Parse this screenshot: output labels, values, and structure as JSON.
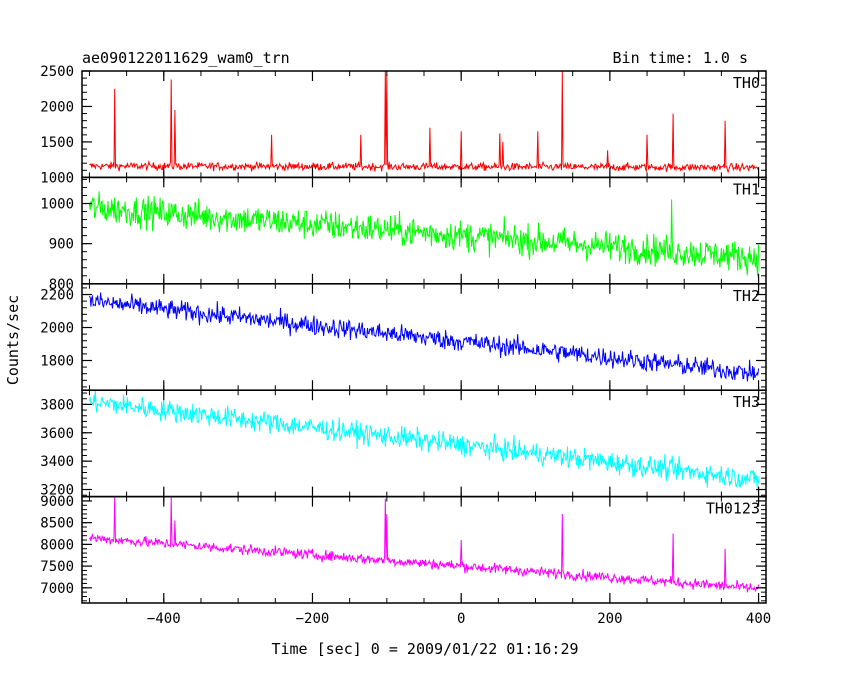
{
  "chart_data": {
    "type": "line",
    "title": "ae090122011629_wam0_trn",
    "bin_time_label": "Bin time: 1.0 s",
    "ylabel": "Counts/sec",
    "xlabel": "Time [sec] 0 = 2009/01/22 01:16:29",
    "xlim": [
      -510,
      410
    ],
    "x_ticks": [
      -400,
      -200,
      0,
      200,
      400
    ],
    "x_tick_labels": [
      "−400",
      "−200",
      "0",
      "200",
      "400"
    ],
    "panels": [
      {
        "name": "TH0",
        "color": "#ff0000",
        "ylim": [
          1000,
          2500
        ],
        "y_ticks": [
          1000,
          1500,
          2000,
          2500
        ],
        "y_tick_labels": [
          "1000",
          "1500",
          "2000",
          "2500"
        ],
        "trend": [
          [
            -500,
            1160
          ],
          [
            400,
            1140
          ]
        ],
        "noise": 50,
        "spikes": [
          [
            -466,
            2250
          ],
          [
            -390,
            2380
          ],
          [
            -385,
            1950
          ],
          [
            -255,
            1600
          ],
          [
            -135,
            1600
          ],
          [
            -102,
            2500
          ],
          [
            -100,
            2450
          ],
          [
            -42,
            1700
          ],
          [
            0,
            1650
          ],
          [
            52,
            1620
          ],
          [
            56,
            1500
          ],
          [
            103,
            1650
          ],
          [
            136,
            2500
          ],
          [
            197,
            1380
          ],
          [
            250,
            1600
          ],
          [
            285,
            1900
          ],
          [
            355,
            1800
          ]
        ]
      },
      {
        "name": "TH1",
        "color": "#00ff00",
        "ylim": [
          800,
          1065
        ],
        "y_ticks": [
          800,
          900,
          1000
        ],
        "y_tick_labels": [
          "800",
          "900",
          "1000"
        ],
        "trend": [
          [
            -500,
            990
          ],
          [
            400,
            865
          ]
        ],
        "noise": 35,
        "spikes": [
          [
            283,
            1010
          ]
        ]
      },
      {
        "name": "TH2",
        "color": "#0000ff",
        "ylim": [
          1620,
          2265
        ],
        "y_ticks": [
          1800,
          2000,
          2200
        ],
        "y_tick_labels": [
          "1800",
          "2000",
          "2200"
        ],
        "trend": [
          [
            -500,
            2160
          ],
          [
            400,
            1720
          ]
        ],
        "noise": 55,
        "spikes": []
      },
      {
        "name": "TH3",
        "color": "#00ffff",
        "ylim": [
          3150,
          3900
        ],
        "y_ticks": [
          3200,
          3400,
          3600,
          3800
        ],
        "y_tick_labels": [
          "3200",
          "3400",
          "3600",
          "3800"
        ],
        "trend": [
          [
            -500,
            3820
          ],
          [
            400,
            3270
          ]
        ],
        "noise": 70,
        "spikes": []
      },
      {
        "name": "TH0123",
        "color": "#ff00ff",
        "ylim": [
          6650,
          9100
        ],
        "y_ticks": [
          7000,
          7500,
          8000,
          8500,
          9000
        ],
        "y_tick_labels": [
          "7000",
          "7500",
          "8000",
          "8500",
          "9000"
        ],
        "trend": [
          [
            -500,
            8150
          ],
          [
            400,
            6980
          ]
        ],
        "noise": 110,
        "spikes": [
          [
            -466,
            9100
          ],
          [
            -390,
            9100
          ],
          [
            -385,
            8550
          ],
          [
            -102,
            9050
          ],
          [
            -100,
            8700
          ],
          [
            0,
            8100
          ],
          [
            136,
            8700
          ],
          [
            285,
            8250
          ],
          [
            355,
            7900
          ]
        ]
      }
    ]
  }
}
